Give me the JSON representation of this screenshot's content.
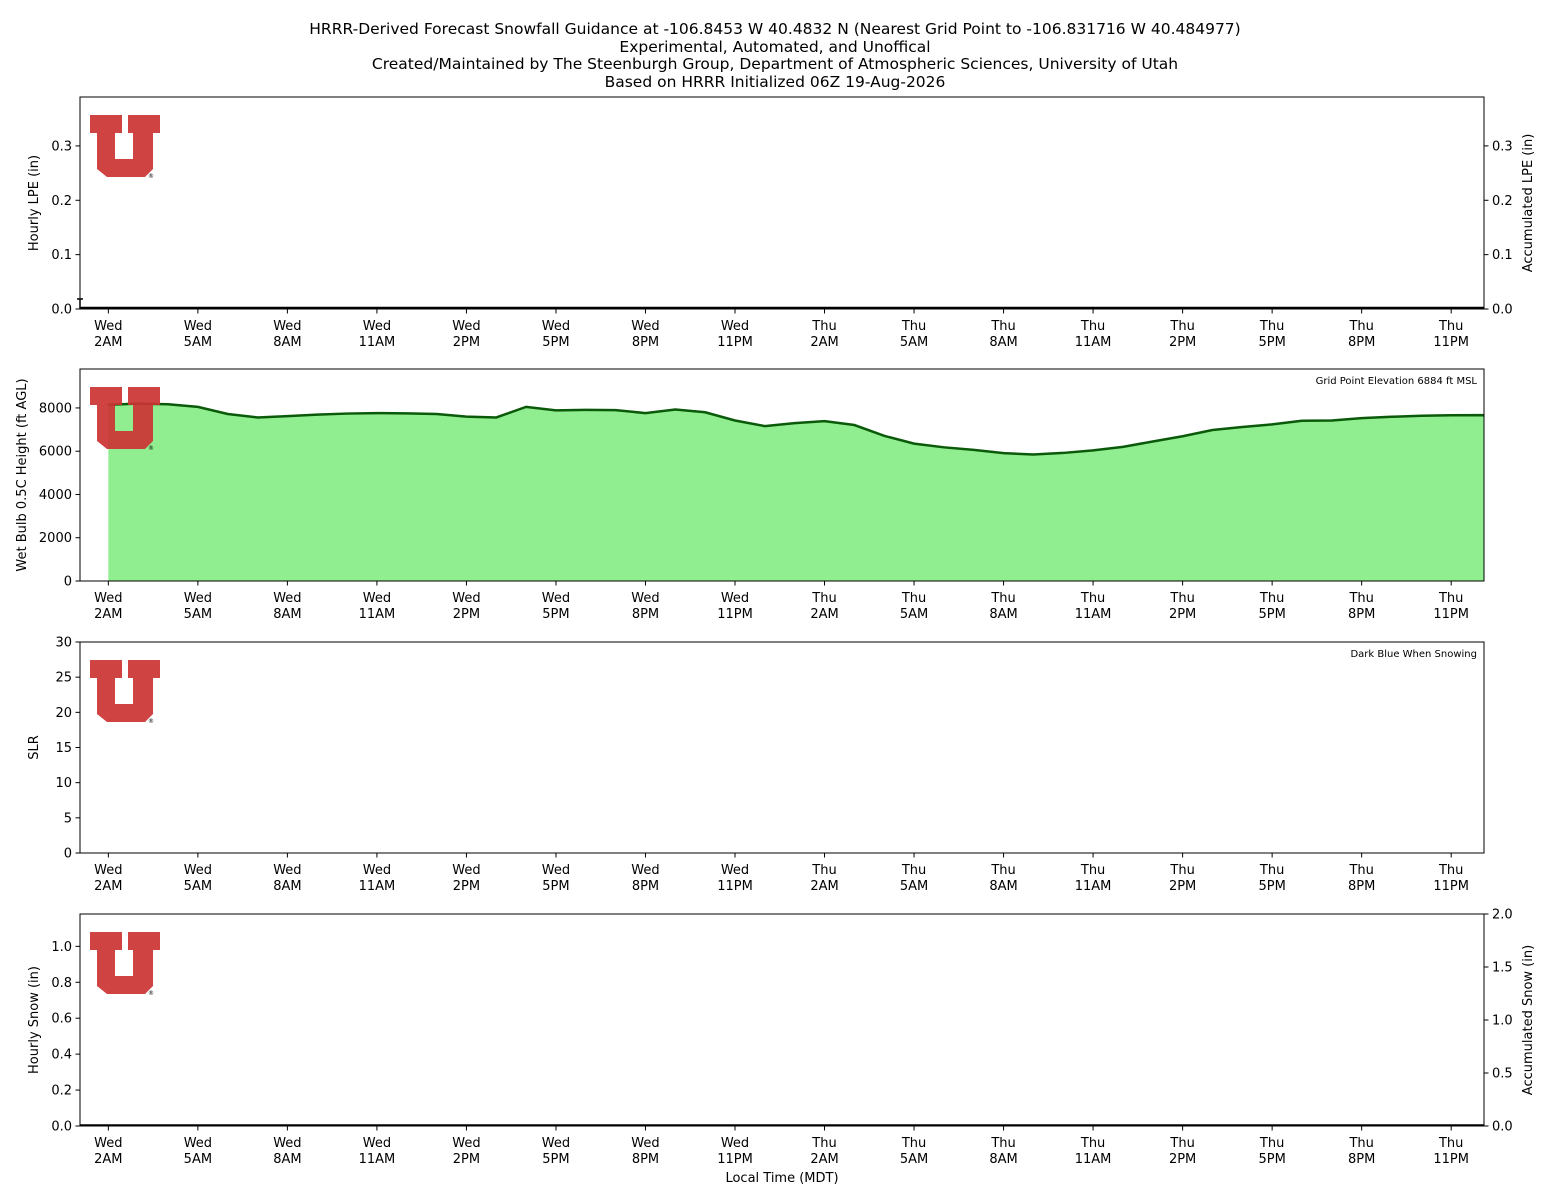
{
  "title_lines": [
    "HRRR-Derived Forecast Snowfall Guidance at -106.8453 W 40.4832 N (Nearest Grid Point to -106.831716 W 40.484977)",
    "Experimental, Automated, and Unoffical",
    "Created/Maintained by The Steenburgh Group, Department of Atmospheric Sciences, University of Utah",
    "Based on HRRR Initialized 06Z 19-Aug-2026"
  ],
  "xlabel": "Local Time (MDT)",
  "x_tick_labels": [
    [
      "Wed",
      "2AM"
    ],
    [
      "Wed",
      "5AM"
    ],
    [
      "Wed",
      "8AM"
    ],
    [
      "Wed",
      "11AM"
    ],
    [
      "Wed",
      "2PM"
    ],
    [
      "Wed",
      "5PM"
    ],
    [
      "Wed",
      "8PM"
    ],
    [
      "Wed",
      "11PM"
    ],
    [
      "Thu",
      "2AM"
    ],
    [
      "Thu",
      "5AM"
    ],
    [
      "Thu",
      "8AM"
    ],
    [
      "Thu",
      "11AM"
    ],
    [
      "Thu",
      "2PM"
    ],
    [
      "Thu",
      "5PM"
    ],
    [
      "Thu",
      "8PM"
    ],
    [
      "Thu",
      "11PM"
    ]
  ],
  "colors": {
    "logo_red": "#cc3333",
    "wetbulb_fill": "#90ee90",
    "wetbulb_line": "#0a5a0a",
    "axis": "#000000"
  },
  "logo": {
    "letter": "U",
    "mark": "®"
  },
  "chart_data": [
    {
      "type": "bar",
      "ylabel": "Hourly LPE (in)",
      "y2label": "Accumulated LPE (in)",
      "ylim": [
        0,
        0.39
      ],
      "yticks": [
        "0.0",
        "0.1",
        "0.2",
        "0.3"
      ],
      "y2ticks": [
        "0.0",
        "0.1",
        "0.2",
        "0.3"
      ],
      "hours": [
        1,
        50
      ],
      "hourly_values": "all 0.0",
      "accumulated_values": "all 0.0"
    },
    {
      "type": "area",
      "ylabel": "Wet Bulb 0.5C Height (ft AGL)",
      "annotation": "Grid Point Elevation 6884 ft MSL",
      "ylim": [
        0,
        9800
      ],
      "yticks": [
        "0",
        "2000",
        "4000",
        "6000",
        "8000"
      ],
      "hours": [
        1,
        2,
        3,
        4,
        5,
        6,
        7,
        8,
        9,
        10,
        11,
        12,
        13,
        14,
        15,
        16,
        17,
        18,
        19,
        20,
        21,
        22,
        23,
        24,
        25,
        26,
        27,
        28,
        29,
        30,
        31,
        32,
        33,
        34,
        35,
        36,
        37,
        38,
        39,
        40,
        41,
        42,
        43,
        44,
        45,
        46,
        47,
        48,
        49,
        50
      ],
      "values": [
        8150,
        8200,
        8170,
        8050,
        7720,
        7560,
        7620,
        7690,
        7740,
        7760,
        7750,
        7720,
        7600,
        7560,
        8050,
        7890,
        7910,
        7900,
        7760,
        7930,
        7800,
        7420,
        7160,
        7300,
        7390,
        7210,
        6710,
        6350,
        6180,
        6060,
        5910,
        5850,
        5920,
        6040,
        6200,
        6450,
        6690,
        6980,
        7120,
        7240,
        7410,
        7420,
        7530,
        7590,
        7640,
        7660,
        7670,
        7660,
        7640,
        7600
      ]
    },
    {
      "type": "line",
      "ylabel": "SLR",
      "annotation": "Dark Blue When Snowing",
      "ylim": [
        0,
        30
      ],
      "yticks": [
        "0",
        "5",
        "10",
        "15",
        "20",
        "25",
        "30"
      ],
      "values": []
    },
    {
      "type": "bar",
      "ylabel": "Hourly Snow (in)",
      "y2label": "Accumulated Snow (in)",
      "ylim": [
        0,
        1.18
      ],
      "y2lim": [
        0,
        2.0
      ],
      "yticks": [
        "0.0",
        "0.2",
        "0.4",
        "0.6",
        "0.8",
        "1.0"
      ],
      "y2ticks": [
        "0.0",
        "0.5",
        "1.0",
        "1.5",
        "2.0"
      ],
      "hourly_values": "all 0.0",
      "accumulated_values": "all 0.0"
    }
  ]
}
